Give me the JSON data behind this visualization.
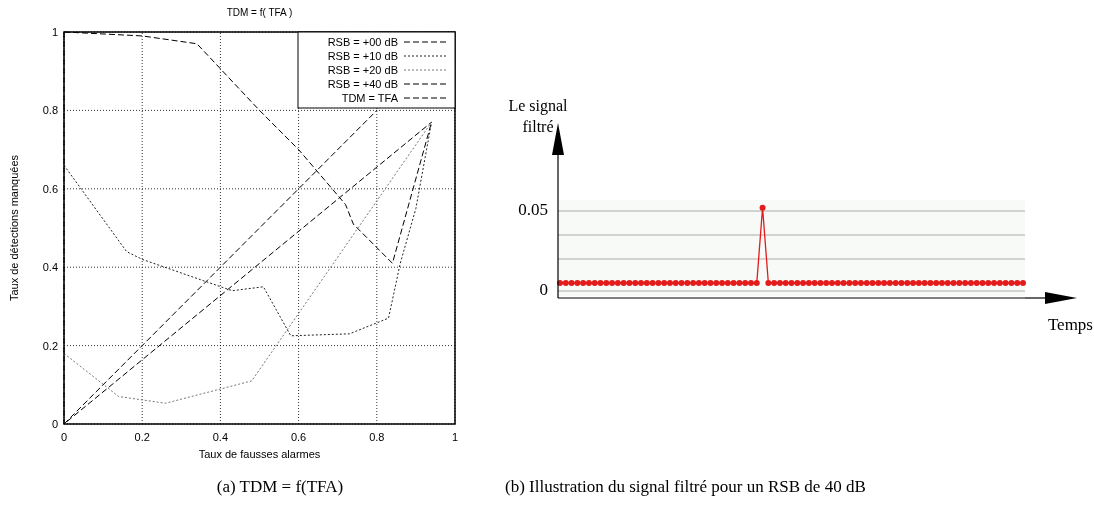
{
  "chart_data": [
    {
      "type": "line",
      "title": "TDM = f( TFA )",
      "xlabel": "Taux de fausses alarmes",
      "ylabel": "Taux de détections manquées",
      "xlim": [
        0,
        1
      ],
      "ylim": [
        0,
        1
      ],
      "xticks": [
        0,
        0.2,
        0.4,
        0.6,
        0.8,
        1
      ],
      "yticks": [
        0,
        0.2,
        0.4,
        0.6,
        0.8,
        1
      ],
      "grid": true,
      "legend": "top right",
      "series": [
        {
          "name": "RSB = +00 dB",
          "color": "#000000",
          "line_style": "dashed",
          "x": [
            0,
            0.2,
            0.34,
            0.5,
            0.6,
            0.72,
            0.74,
            0.84,
            0.94
          ],
          "values": [
            1,
            0.99,
            0.97,
            0.8,
            0.7,
            0.56,
            0.51,
            0.41,
            0.77
          ]
        },
        {
          "name": "RSB = +10 dB",
          "color": "#222222",
          "line_style": "dotted",
          "x": [
            0,
            0.16,
            0.2,
            0.43,
            0.51,
            0.58,
            0.73,
            0.83,
            0.86,
            0.9,
            0.94
          ],
          "values": [
            0.66,
            0.44,
            0.42,
            0.34,
            0.35,
            0.225,
            0.23,
            0.27,
            0.41,
            0.55,
            0.77
          ]
        },
        {
          "name": "RSB = +20 dB",
          "color": "#777777",
          "line_style": "dotted",
          "x": [
            0,
            0.14,
            0.26,
            0.48,
            0.94
          ],
          "values": [
            0.18,
            0.07,
            0.053,
            0.11,
            0.77
          ]
        },
        {
          "name": "RSB = +40 dB",
          "color": "#000000",
          "line_style": "dashed",
          "x": [
            0,
            0,
            0.94
          ],
          "values": [
            1,
            0,
            0.77
          ]
        },
        {
          "name": "TDM = TFA",
          "color": "#000000",
          "line_style": "dashed",
          "x": [
            0,
            0.8
          ],
          "values": [
            0,
            0.8
          ]
        }
      ],
      "annotations": [
        "(a) TDM = f(TFA)"
      ]
    },
    {
      "type": "line",
      "xlabel": "Temps",
      "ylabel": "Le signal filtré",
      "ylim": [
        0,
        0.06
      ],
      "categories": [
        null,
        null,
        null,
        null,
        null,
        null,
        null,
        null,
        null,
        null,
        null,
        null,
        null,
        null,
        null,
        null,
        null,
        null,
        null,
        null,
        null,
        null,
        null,
        null,
        null,
        null,
        null,
        null,
        null,
        null,
        null,
        null,
        null,
        null,
        null,
        null,
        null,
        null,
        null,
        null,
        null,
        null,
        null,
        null,
        null,
        null,
        null,
        null,
        null,
        null,
        null,
        null,
        null,
        null,
        null,
        null,
        null,
        null,
        null,
        null,
        null,
        null,
        null,
        null,
        null,
        null,
        null,
        null,
        null,
        null,
        null,
        null,
        null,
        null,
        null,
        null,
        null,
        null,
        null,
        null,
        null
      ],
      "yticks": [
        0,
        {
          "value": 0.02,
          "label": null
        },
        {
          "value": 0.035,
          "label": null
        },
        0.05
      ],
      "grid": "y",
      "marker": "circle",
      "series": [
        {
          "color": "#e31b1b",
          "values": [
            0.005,
            0.005,
            0.005,
            0.005,
            0.005,
            0.005,
            0.005,
            0.005,
            0.005,
            0.005,
            0.005,
            0.005,
            0.005,
            0.005,
            0.005,
            0.005,
            0.005,
            0.005,
            0.005,
            0.005,
            0.005,
            0.005,
            0.005,
            0.005,
            0.005,
            0.005,
            0.005,
            0.005,
            0.005,
            0.005,
            0.005,
            0.005,
            0.005,
            0.005,
            0.005,
            0.052,
            0.005,
            0.005,
            0.005,
            0.005,
            0.005,
            0.005,
            0.005,
            0.005,
            0.005,
            0.005,
            0.005,
            0.005,
            0.005,
            0.005,
            0.005,
            0.005,
            0.005,
            0.005,
            0.005,
            0.005,
            0.005,
            0.005,
            0.005,
            0.005,
            0.005,
            0.005,
            0.005,
            0.005,
            0.005,
            0.005,
            0.005,
            0.005,
            0.005,
            0.005,
            0.005,
            0.005,
            0.005,
            0.005,
            0.005,
            0.005,
            0.005,
            0.005,
            0.005,
            0.005,
            0.005
          ]
        }
      ],
      "annotations": [
        "(b) Illustration du signal filtré pour un RSB de 40 dB"
      ]
    }
  ]
}
